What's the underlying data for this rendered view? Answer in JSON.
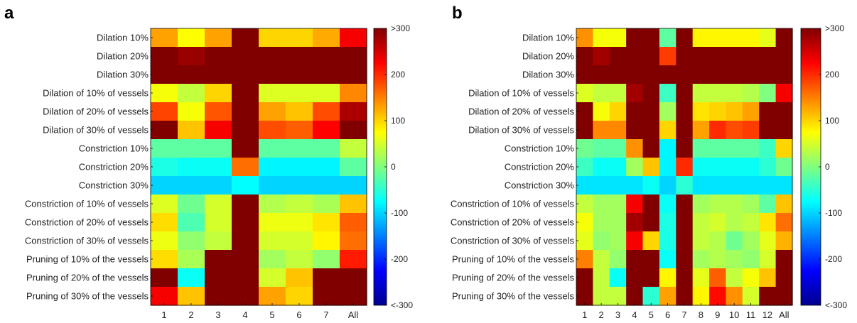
{
  "chart_data": [
    {
      "type": "heatmap",
      "panel_label": "a",
      "rows": [
        "Dilation 10%",
        "Dilation 20%",
        "Dilation 30%",
        "Dilation of 10% of vessels",
        "Dilation of 20% of vessels",
        "Dilation of 30% of vessels",
        "Constriction 10%",
        "Constriction 20%",
        "Constriction 30%",
        "Constriction of 10% of vessels",
        "Constriction of 20% of vessels",
        "Constriction of 30% of vessels",
        "Pruning of 10% of the vessels",
        "Pruning of 20% of the vessels",
        "Pruning of 30% of the vessels"
      ],
      "columns": [
        "1",
        "2",
        "3",
        "4",
        "5",
        "6",
        "7",
        "All"
      ],
      "values": [
        [
          130,
          75,
          130,
          300,
          100,
          100,
          125,
          230
        ],
        [
          300,
          285,
          300,
          300,
          300,
          300,
          300,
          300
        ],
        [
          300,
          300,
          300,
          300,
          300,
          300,
          300,
          300
        ],
        [
          70,
          40,
          100,
          300,
          55,
          55,
          55,
          145
        ],
        [
          185,
          70,
          175,
          300,
          130,
          110,
          180,
          275
        ],
        [
          300,
          110,
          230,
          300,
          180,
          170,
          225,
          300
        ],
        [
          -20,
          -20,
          -20,
          300,
          -20,
          -20,
          -20,
          40
        ],
        [
          -60,
          -70,
          -70,
          160,
          -80,
          -80,
          -80,
          -20
        ],
        [
          -100,
          -100,
          -100,
          -75,
          -100,
          -100,
          -100,
          -100
        ],
        [
          55,
          -10,
          50,
          300,
          30,
          40,
          25,
          110
        ],
        [
          95,
          -30,
          50,
          300,
          65,
          65,
          90,
          170
        ],
        [
          65,
          10,
          40,
          300,
          50,
          50,
          80,
          160
        ],
        [
          95,
          25,
          300,
          300,
          20,
          40,
          10,
          210
        ],
        [
          300,
          -70,
          300,
          300,
          50,
          110,
          300,
          300
        ],
        [
          230,
          110,
          300,
          300,
          130,
          100,
          300,
          300
        ]
      ],
      "colorbar": {
        "range": [
          -300,
          300
        ],
        "tick_labels": [
          ">300",
          "200",
          "100",
          "0",
          "-100",
          "-200",
          "<-300"
        ],
        "tick_values": [
          300,
          200,
          100,
          0,
          -100,
          -200,
          -300
        ]
      }
    },
    {
      "type": "heatmap",
      "panel_label": "b",
      "rows": [
        "Dilation 10%",
        "Dilation 20%",
        "Dilation 30%",
        "Dilation of 10% of vessels",
        "Dilation of 20% of vessels",
        "Dilation of 30% of vessels",
        "Constriction 10%",
        "Constriction 20%",
        "Constriction 30%",
        "Constriction of 10% of vessels",
        "Constriction of 20% of vessels",
        "Constriction of 30% of vessels",
        "Pruning of 10% of the vessels",
        "Pruning of 20% of the vessels",
        "Pruning of 30% of the vessels"
      ],
      "columns": [
        "1",
        "2",
        "3",
        "4",
        "5",
        "6",
        "7",
        "8",
        "9",
        "10",
        "11",
        "12",
        "All"
      ],
      "values": [
        [
          140,
          70,
          70,
          300,
          300,
          -20,
          300,
          80,
          80,
          80,
          80,
          60,
          300
        ],
        [
          300,
          280,
          300,
          300,
          300,
          190,
          300,
          300,
          300,
          300,
          300,
          300,
          300
        ],
        [
          300,
          300,
          300,
          300,
          300,
          300,
          300,
          300,
          300,
          300,
          300,
          300,
          300
        ],
        [
          55,
          40,
          40,
          280,
          300,
          -40,
          300,
          40,
          40,
          40,
          30,
          0,
          230
        ],
        [
          300,
          70,
          100,
          300,
          300,
          20,
          300,
          90,
          100,
          110,
          130,
          300,
          300
        ],
        [
          300,
          145,
          145,
          300,
          300,
          100,
          300,
          130,
          200,
          180,
          190,
          300,
          300
        ],
        [
          -10,
          -20,
          -20,
          140,
          300,
          -80,
          300,
          -20,
          -20,
          -20,
          -20,
          -40,
          100
        ],
        [
          -40,
          -70,
          -70,
          20,
          110,
          -80,
          200,
          -70,
          -70,
          -70,
          -70,
          -50,
          -10
        ],
        [
          -90,
          -90,
          -90,
          -90,
          -70,
          -100,
          -50,
          -90,
          -90,
          -90,
          -90,
          -90,
          -90
        ],
        [
          40,
          20,
          20,
          230,
          300,
          -70,
          300,
          20,
          30,
          30,
          20,
          -20,
          110
        ],
        [
          70,
          20,
          20,
          280,
          300,
          -60,
          300,
          40,
          50,
          30,
          40,
          90,
          160
        ],
        [
          60,
          10,
          20,
          230,
          100,
          -60,
          300,
          40,
          30,
          -10,
          20,
          60,
          120
        ],
        [
          150,
          40,
          10,
          300,
          300,
          -70,
          300,
          20,
          30,
          20,
          10,
          50,
          300
        ],
        [
          300,
          40,
          -70,
          300,
          300,
          80,
          300,
          60,
          170,
          40,
          70,
          110,
          300
        ],
        [
          300,
          40,
          40,
          300,
          -50,
          130,
          300,
          80,
          220,
          140,
          50,
          300,
          300
        ]
      ],
      "colorbar": {
        "range": [
          -300,
          300
        ],
        "tick_labels": [
          ">300",
          "200",
          "100",
          "0",
          "-100",
          "-200",
          "<-300"
        ],
        "tick_values": [
          300,
          200,
          100,
          0,
          -100,
          -200,
          -300
        ]
      }
    }
  ]
}
